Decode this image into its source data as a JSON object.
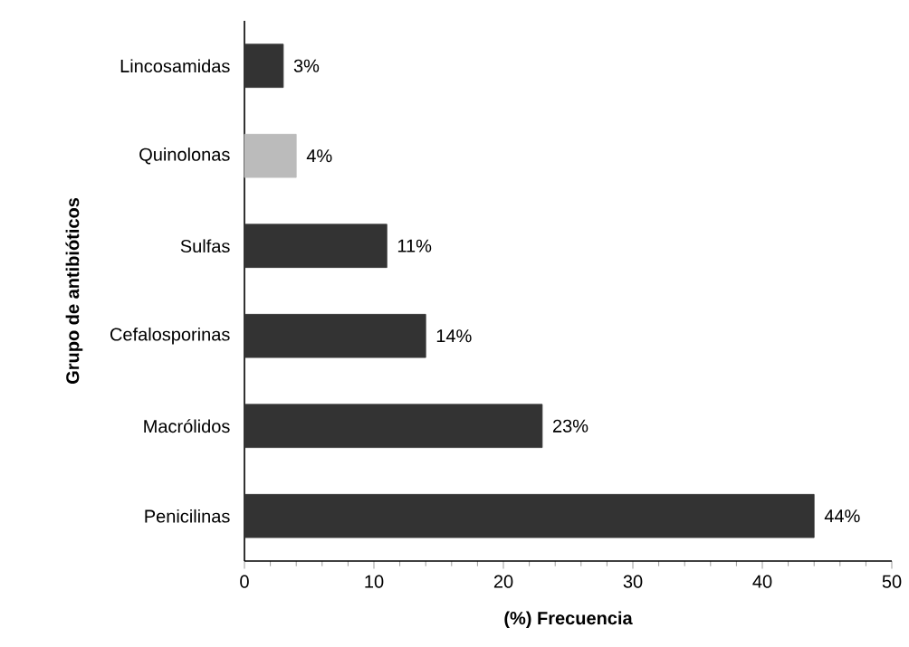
{
  "chart_data": {
    "type": "bar",
    "orientation": "horizontal",
    "xlabel": "(%) Frecuencia",
    "ylabel": "Grupo de antibióticos",
    "categories": [
      "Lincosamidas",
      "Quinolonas",
      "Sulfas",
      "Cefalosporinas",
      "Macrólidos",
      "Penicilinas"
    ],
    "values": [
      3,
      4,
      11,
      14,
      23,
      44
    ],
    "colors": [
      "#333333",
      "#bbbbbb",
      "#333333",
      "#333333",
      "#333333",
      "#333333"
    ],
    "value_labels": [
      "3%",
      "4%",
      "11%",
      "14%",
      "23%",
      "44%"
    ],
    "xlim": [
      0,
      50
    ],
    "xticks": [
      0,
      10,
      20,
      30,
      40,
      50
    ],
    "grid": false
  }
}
